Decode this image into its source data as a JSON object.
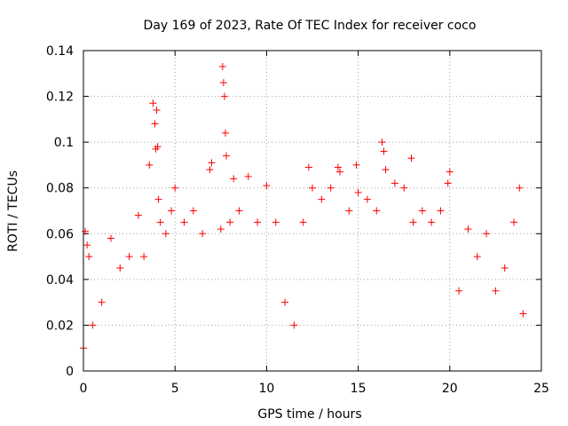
{
  "chart_data": {
    "type": "scatter",
    "title": "Day 169 of 2023, Rate Of TEC Index for receiver coco",
    "xlabel": "GPS time / hours",
    "ylabel": "ROTI / TECUs",
    "xlim": [
      0,
      25
    ],
    "ylim": [
      0,
      0.14
    ],
    "xticks": [
      0,
      5,
      10,
      15,
      20,
      25
    ],
    "xtick_labels": [
      "0",
      "5",
      "10",
      "15",
      "20",
      "25"
    ],
    "yticks": [
      0,
      0.02,
      0.04,
      0.06,
      0.08,
      0.1,
      0.12,
      0.14
    ],
    "ytick_labels": [
      "0",
      "0.02",
      "0.04",
      "0.06",
      "0.08",
      "0.1",
      "0.12",
      "0.14"
    ],
    "grid": true,
    "marker": "plus",
    "color": "#ff0000",
    "series": [
      {
        "x": [
          0.0,
          0.1,
          0.2,
          0.3,
          0.5,
          1.0,
          1.5,
          2.0,
          2.5,
          3.0,
          3.3,
          3.6,
          3.8,
          3.9,
          3.95,
          4.0,
          4.05,
          4.1,
          4.2,
          4.5,
          4.8,
          5.0,
          5.5,
          6.0,
          6.5,
          6.9,
          7.0,
          7.5,
          7.6,
          7.65,
          7.7,
          7.75,
          7.8,
          8.0,
          8.2,
          8.5,
          9.0,
          9.5,
          10.0,
          10.5,
          11.0,
          11.5,
          12.0,
          12.3,
          12.5,
          13.0,
          13.5,
          13.9,
          14.0,
          14.5,
          14.9,
          15.0,
          15.5,
          16.0,
          16.3,
          16.4,
          16.5,
          17.0,
          17.5,
          17.9,
          18.0,
          18.5,
          19.0,
          19.5,
          19.9,
          20.0,
          20.5,
          21.0,
          21.5,
          22.0,
          22.5,
          23.0,
          23.5,
          23.8,
          24.0
        ],
        "y": [
          0.01,
          0.061,
          0.055,
          0.05,
          0.02,
          0.03,
          0.058,
          0.045,
          0.05,
          0.068,
          0.05,
          0.09,
          0.117,
          0.108,
          0.097,
          0.114,
          0.098,
          0.075,
          0.065,
          0.06,
          0.07,
          0.08,
          0.065,
          0.07,
          0.06,
          0.088,
          0.091,
          0.062,
          0.133,
          0.126,
          0.12,
          0.104,
          0.094,
          0.065,
          0.084,
          0.07,
          0.085,
          0.065,
          0.081,
          0.065,
          0.03,
          0.02,
          0.065,
          0.089,
          0.08,
          0.075,
          0.08,
          0.089,
          0.087,
          0.07,
          0.09,
          0.078,
          0.075,
          0.07,
          0.1,
          0.096,
          0.088,
          0.082,
          0.08,
          0.093,
          0.065,
          0.07,
          0.065,
          0.07,
          0.082,
          0.087,
          0.035,
          0.062,
          0.05,
          0.06,
          0.035,
          0.045,
          0.065,
          0.08,
          0.025
        ]
      }
    ]
  }
}
